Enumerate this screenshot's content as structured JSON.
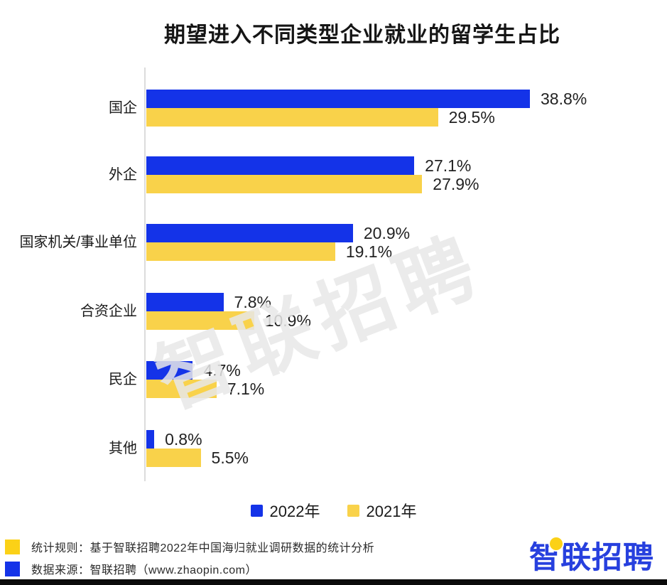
{
  "title": "期望进入不同类型企业就业的留学生占比",
  "watermark": "智联招聘",
  "colors": {
    "bar_blue": "#1433E8",
    "bar_yellow": "#F9D24A",
    "footer_yellow": "#FBD117",
    "footer_blue": "#1433E8",
    "logo_blue": "#2740DE",
    "axis_gray": "#DCDCDC"
  },
  "chart_data": {
    "type": "bar",
    "orientation": "horizontal",
    "title": "期望进入不同类型企业就业的留学生占比",
    "categories": [
      "国企",
      "外企",
      "国家机关/事业单位",
      "合资企业",
      "民企",
      "其他"
    ],
    "series": [
      {
        "name": "2022年",
        "color": "#1433E8",
        "values": [
          38.8,
          27.1,
          20.9,
          7.8,
          4.7,
          0.8
        ]
      },
      {
        "name": "2021年",
        "color": "#F9D24A",
        "values": [
          29.5,
          27.9,
          19.1,
          10.9,
          7.1,
          5.5
        ]
      }
    ],
    "value_suffix": "%",
    "xlim": [
      0,
      40
    ],
    "grid": false,
    "legend_position": "bottom"
  },
  "legend": [
    {
      "label": "2022年",
      "color": "#1433E8"
    },
    {
      "label": "2021年",
      "color": "#F9D24A"
    }
  ],
  "footer": {
    "lines": [
      {
        "marker_color": "#FBD117",
        "text": "统计规则：基于智联招聘2022年中国海归就业调研数据的统计分析"
      },
      {
        "marker_color": "#1433E8",
        "text": "数据来源：智联招聘（www.zhaopin.com）"
      }
    ],
    "logo_text": "智联招聘"
  }
}
